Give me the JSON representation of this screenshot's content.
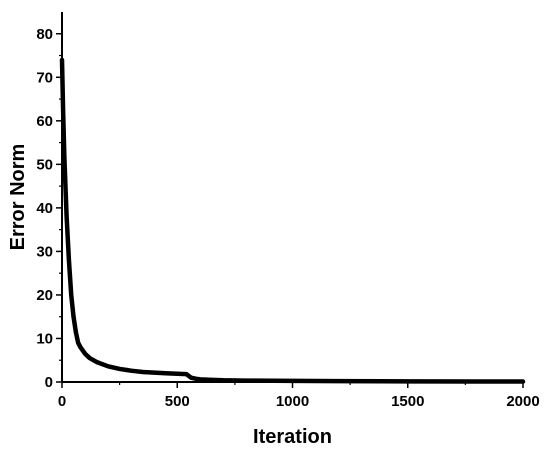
{
  "chart_data": {
    "type": "line",
    "title": "",
    "xlabel": "Iteration",
    "ylabel": "Error Norm",
    "xlim": [
      0,
      2000
    ],
    "ylim": [
      0,
      85
    ],
    "x_ticks": [
      0,
      500,
      1000,
      1500,
      2000
    ],
    "y_ticks": [
      0,
      10,
      20,
      30,
      40,
      50,
      60,
      70,
      80
    ],
    "x_tick_labels": [
      "0",
      "500",
      "1000",
      "1500",
      "2000"
    ],
    "y_tick_labels": [
      "0",
      "10",
      "20",
      "30",
      "40",
      "50",
      "60",
      "70",
      "80"
    ],
    "grid": false,
    "legend": "none",
    "series": [
      {
        "color": "#000000",
        "x": [
          0,
          5,
          10,
          20,
          30,
          40,
          50,
          60,
          70,
          80,
          100,
          120,
          150,
          200,
          250,
          300,
          350,
          400,
          450,
          500,
          540,
          560,
          580,
          600,
          650,
          700,
          800,
          1000,
          1200,
          1500,
          1800,
          2000
        ],
        "y": [
          74,
          62,
          52,
          38,
          28,
          20,
          15,
          11.5,
          9,
          8,
          6.5,
          5.5,
          4.6,
          3.6,
          3.0,
          2.6,
          2.3,
          2.15,
          2.0,
          1.9,
          1.8,
          1.0,
          0.75,
          0.6,
          0.5,
          0.4,
          0.32,
          0.25,
          0.2,
          0.15,
          0.12,
          0.1
        ]
      }
    ]
  }
}
